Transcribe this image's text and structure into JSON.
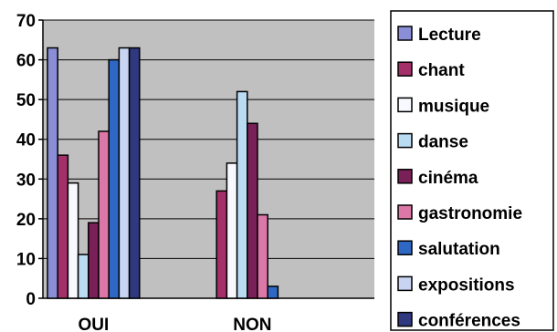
{
  "chart_data": {
    "type": "bar",
    "title": "",
    "xlabel": "",
    "ylabel": "",
    "ylim": [
      0,
      70
    ],
    "yticks": [
      0,
      10,
      20,
      30,
      40,
      50,
      60,
      70
    ],
    "grid": true,
    "legend_position": "right",
    "plot_background": "#c0c0c0",
    "categories": [
      "OUI",
      "NON"
    ],
    "series": [
      {
        "name": "Lecture",
        "color": "#8a8ed6",
        "values": [
          63,
          0
        ]
      },
      {
        "name": "chant",
        "color": "#a4306a",
        "values": [
          36,
          27
        ]
      },
      {
        "name": "musique",
        "color": "#f8f8ff",
        "values": [
          29,
          34
        ]
      },
      {
        "name": "danse",
        "color": "#b9dcf3",
        "values": [
          11,
          52
        ]
      },
      {
        "name": "cinéma",
        "color": "#7a2058",
        "values": [
          19,
          44
        ]
      },
      {
        "name": "gastronomie",
        "color": "#dc78a8",
        "values": [
          42,
          21
        ]
      },
      {
        "name": "salutation",
        "color": "#2e68c4",
        "values": [
          60,
          3
        ]
      },
      {
        "name": "expositions",
        "color": "#c8d4f2",
        "values": [
          63,
          0
        ]
      },
      {
        "name": "conférences",
        "color": "#303880",
        "values": [
          63,
          0
        ]
      }
    ]
  }
}
